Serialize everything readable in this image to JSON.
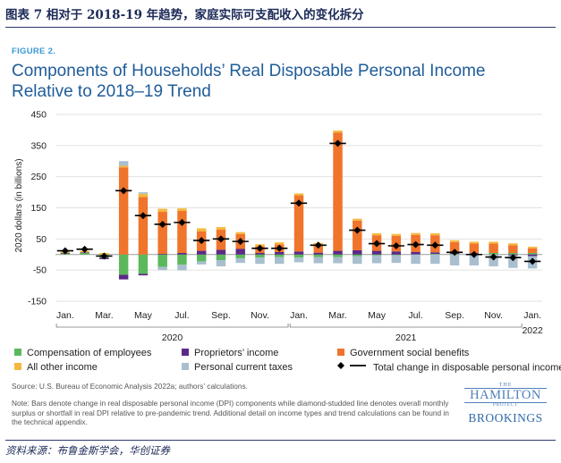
{
  "cn_title": "图表 7   相对于 2018-19 年趋势，家庭实际可支配收入的变化拆分",
  "figure_label": "FIGURE 2.",
  "title": "Components of Households’ Real Disposable Personal Income Relative to 2018–19 Trend",
  "source": "Source: U.S. Bureau of Economic Analysis 2022a; authors’ calculations.",
  "note": "Note: Bars denote change in real disposable personal income (DPI) components while diamond-studded line denotes overall monthly surplus or shortfall in real DPI relative to pre-pandemic trend. Additional detail on income types and trend calculations can be found in the technical appendix.",
  "logo": {
    "the": "THE",
    "hamilton": "HAMILTON",
    "project": "PROJECT",
    "brookings": "BROOKINGS"
  },
  "footer": "资料来源：布鲁金斯学会，华创证券",
  "legend": [
    {
      "name": "Compensation of employees",
      "color": "#5cb85c",
      "marker": "square"
    },
    {
      "name": "Proprietors’ income",
      "color": "#5b2a86",
      "marker": "square"
    },
    {
      "name": "Government social benefits",
      "color": "#f0742b",
      "marker": "square"
    },
    {
      "name": "All other income",
      "color": "#f5b83d",
      "marker": "square"
    },
    {
      "name": "Personal current taxes",
      "color": "#a9bfcf",
      "marker": "square"
    },
    {
      "name": "Total change in disposable personal income",
      "color": "#000000",
      "marker": "line-diamond"
    }
  ],
  "chart_data": {
    "type": "bar",
    "stacked": true,
    "ylabel": "2020 dollars (in billions)",
    "ylim": [
      -150,
      450
    ],
    "yticks": [
      450,
      350,
      250,
      150,
      50,
      -50,
      -150
    ],
    "months": [
      "2020-01",
      "2020-02",
      "2020-03",
      "2020-04",
      "2020-05",
      "2020-06",
      "2020-07",
      "2020-08",
      "2020-09",
      "2020-10",
      "2020-11",
      "2020-12",
      "2021-01",
      "2021-02",
      "2021-03",
      "2021-04",
      "2021-05",
      "2021-06",
      "2021-07",
      "2021-08",
      "2021-09",
      "2021-10",
      "2021-11",
      "2021-12",
      "2022-01"
    ],
    "tick_labels": [
      {
        "label": "Jan.",
        "index": 0
      },
      {
        "label": "Mar.",
        "index": 2
      },
      {
        "label": "May",
        "index": 4
      },
      {
        "label": "Jul.",
        "index": 6
      },
      {
        "label": "Sep.",
        "index": 8
      },
      {
        "label": "Nov.",
        "index": 10
      },
      {
        "label": "Jan.",
        "index": 12
      },
      {
        "label": "Mar.",
        "index": 14
      },
      {
        "label": "May",
        "index": 16
      },
      {
        "label": "Jul.",
        "index": 18
      },
      {
        "label": "Sep.",
        "index": 20
      },
      {
        "label": "Nov.",
        "index": 22
      },
      {
        "label": "Jan.",
        "index": 24
      }
    ],
    "year_labels": [
      {
        "label": "2020",
        "start": 0,
        "end": 11
      },
      {
        "label": "2021",
        "start": 12,
        "end": 23
      },
      {
        "label": "2022",
        "start": 24,
        "end": 24
      }
    ],
    "series": [
      {
        "name": "Compensation of employees",
        "color": "#5cb85c",
        "values": [
          3,
          5,
          -10,
          -65,
          -62,
          -40,
          -33,
          -22,
          -18,
          -12,
          -10,
          -8,
          -10,
          -8,
          -8,
          -5,
          -3,
          -2,
          0,
          2,
          2,
          3,
          5,
          5,
          5
        ]
      },
      {
        "name": "Proprietors’ income",
        "color": "#5b2a86",
        "values": [
          2,
          2,
          -5,
          -15,
          -5,
          2,
          5,
          12,
          15,
          18,
          5,
          8,
          10,
          6,
          12,
          14,
          12,
          10,
          8,
          5,
          3,
          2,
          0,
          -3,
          -5
        ]
      },
      {
        "name": "Government social benefits",
        "color": "#f0742b",
        "values": [
          0,
          0,
          0,
          280,
          185,
          135,
          135,
          62,
          65,
          48,
          22,
          25,
          180,
          25,
          380,
          95,
          50,
          50,
          55,
          55,
          35,
          30,
          30,
          25,
          15
        ]
      },
      {
        "name": "All other income",
        "color": "#f5b83d",
        "values": [
          5,
          5,
          5,
          5,
          10,
          10,
          8,
          10,
          8,
          6,
          6,
          6,
          6,
          6,
          6,
          6,
          6,
          6,
          6,
          6,
          6,
          6,
          6,
          6,
          5
        ]
      },
      {
        "name": "Personal current taxes",
        "color": "#a9bfcf",
        "values": [
          0,
          0,
          0,
          15,
          5,
          -10,
          -18,
          -10,
          -20,
          -15,
          -20,
          -22,
          -15,
          -20,
          -20,
          -25,
          -25,
          -25,
          -30,
          -30,
          -35,
          -35,
          -38,
          -40,
          -40
        ]
      }
    ],
    "total": {
      "name": "Total change in disposable personal income",
      "values": [
        12,
        17,
        -5,
        205,
        125,
        97,
        103,
        45,
        50,
        42,
        20,
        20,
        165,
        30,
        357,
        78,
        35,
        28,
        32,
        30,
        7,
        0,
        -8,
        -10,
        -22
      ]
    }
  }
}
